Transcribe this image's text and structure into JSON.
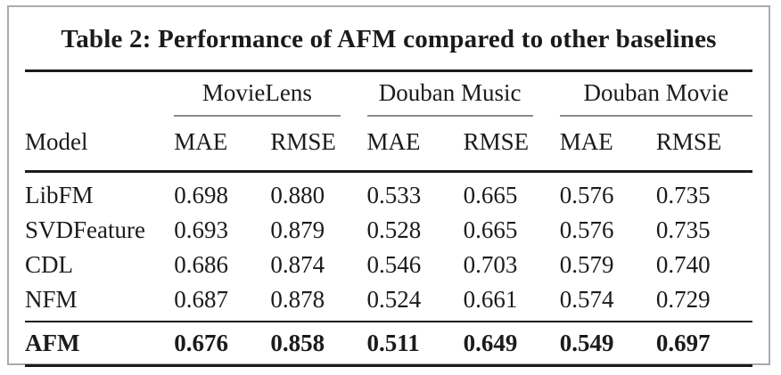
{
  "table": {
    "title": "Table 2: Performance of AFM compared to other baselines",
    "col_groups": [
      {
        "label": "MovieLens"
      },
      {
        "label": "Douban Music"
      },
      {
        "label": "Douban Movie"
      }
    ],
    "model_header": "Model",
    "sub_headers": [
      "MAE",
      "RMSE",
      "MAE",
      "RMSE",
      "MAE",
      "RMSE"
    ],
    "rows": [
      {
        "model": "LibFM",
        "values": [
          "0.698",
          "0.880",
          "0.533",
          "0.665",
          "0.576",
          "0.735"
        ]
      },
      {
        "model": "SVDFeature",
        "values": [
          "0.693",
          "0.879",
          "0.528",
          "0.665",
          "0.576",
          "0.735"
        ]
      },
      {
        "model": "CDL",
        "values": [
          "0.686",
          "0.874",
          "0.546",
          "0.703",
          "0.579",
          "0.740"
        ]
      },
      {
        "model": "NFM",
        "values": [
          "0.687",
          "0.878",
          "0.524",
          "0.661",
          "0.574",
          "0.729"
        ]
      },
      {
        "model": "AFM",
        "values": [
          "0.676",
          "0.858",
          "0.511",
          "0.649",
          "0.549",
          "0.697"
        ]
      }
    ],
    "colors": {
      "text": "#1b1b1b",
      "rule": "#1b1b1b",
      "cmidrule": "#8c8c8c",
      "frame_border": "#ababab",
      "background": "#ffffff"
    }
  },
  "chart_data": {
    "type": "table",
    "title": "Table 2: Performance of AFM compared to other baselines",
    "column_groups": [
      "MovieLens",
      "Douban Music",
      "Douban Movie"
    ],
    "columns": [
      "Model",
      "MovieLens MAE",
      "MovieLens RMSE",
      "Douban Music MAE",
      "Douban Music RMSE",
      "Douban Movie MAE",
      "Douban Movie RMSE"
    ],
    "rows": [
      [
        "LibFM",
        0.698,
        0.88,
        0.533,
        0.665,
        0.576,
        0.735
      ],
      [
        "SVDFeature",
        0.693,
        0.879,
        0.528,
        0.665,
        0.576,
        0.735
      ],
      [
        "CDL",
        0.686,
        0.874,
        0.546,
        0.703,
        0.579,
        0.74
      ],
      [
        "NFM",
        0.687,
        0.878,
        0.524,
        0.661,
        0.574,
        0.729
      ],
      [
        "AFM",
        0.676,
        0.858,
        0.511,
        0.649,
        0.549,
        0.697
      ]
    ],
    "bold_row": "AFM"
  }
}
